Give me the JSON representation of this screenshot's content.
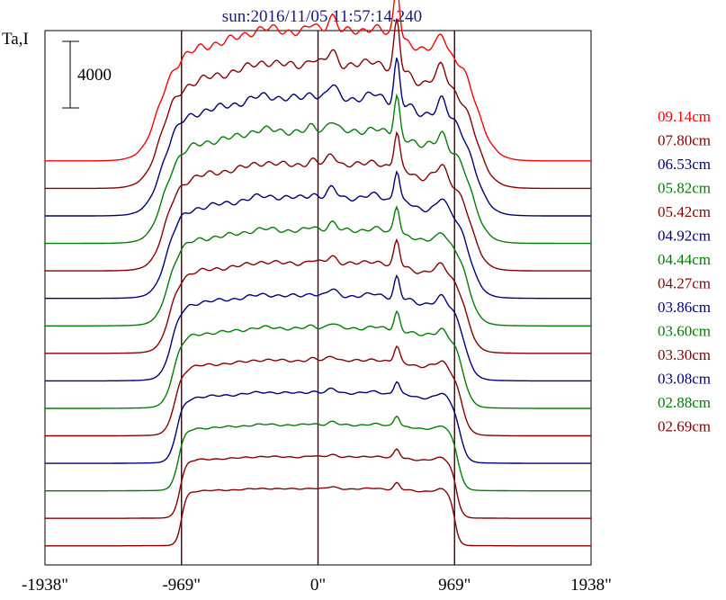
{
  "chart_data": {
    "type": "line",
    "title": "sun:2016/11/05 11:57:14.240",
    "ylabel": "Ta,I",
    "xlabel": "",
    "scale_bar_label": "4000",
    "scale_bar_value": 4000,
    "xlim": [
      -1938,
      1938
    ],
    "x_ticks": [
      -1938,
      -969,
      0,
      969,
      1938
    ],
    "x_tick_labels": [
      "-1938\"",
      "-969\"",
      "0\"",
      "969\"",
      "1938\""
    ],
    "vertical_lines": [
      -969,
      0,
      969
    ],
    "grid": false,
    "legend_position": "right",
    "series": [
      {
        "name": "09.14cm",
        "color": "#ff0000",
        "offset": 14
      },
      {
        "name": "07.80cm",
        "color": "#8b0000",
        "offset": 13
      },
      {
        "name": "06.53cm",
        "color": "#000080",
        "offset": 12
      },
      {
        "name": "05.82cm",
        "color": "#008000",
        "offset": 11
      },
      {
        "name": "05.42cm",
        "color": "#8b0000",
        "offset": 10
      },
      {
        "name": "04.92cm",
        "color": "#000080",
        "offset": 9
      },
      {
        "name": "04.44cm",
        "color": "#008000",
        "offset": 8
      },
      {
        "name": "04.27cm",
        "color": "#8b0000",
        "offset": 7
      },
      {
        "name": "03.86cm",
        "color": "#000080",
        "offset": 6
      },
      {
        "name": "03.60cm",
        "color": "#008000",
        "offset": 5
      },
      {
        "name": "03.30cm",
        "color": "#8b0000",
        "offset": 4
      },
      {
        "name": "03.08cm",
        "color": "#000080",
        "offset": 3
      },
      {
        "name": "02.88cm",
        "color": "#008000",
        "offset": 2
      },
      {
        "name": "02.69cm",
        "color": "#8b0000",
        "offset": 1
      },
      {
        "name": "",
        "color": "#8b0000",
        "offset": 0
      }
    ]
  }
}
